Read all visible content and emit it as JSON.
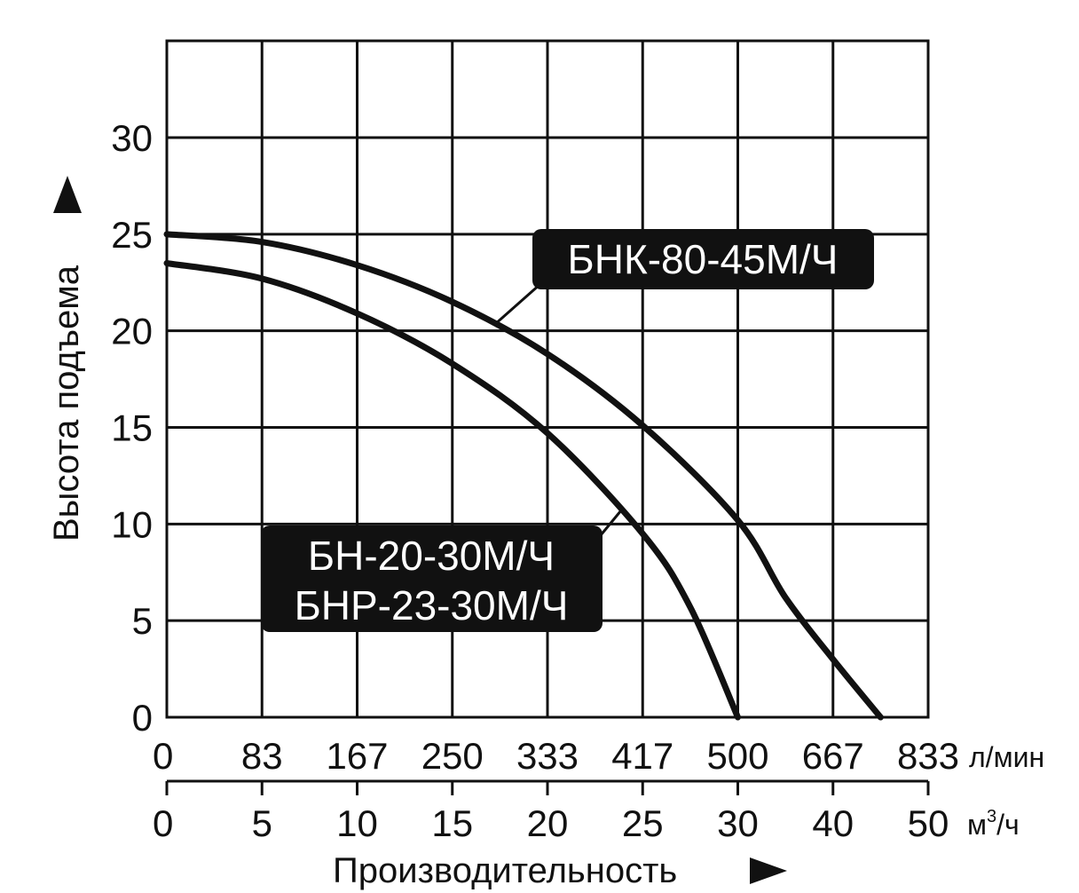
{
  "chart_data": {
    "type": "line",
    "title": "",
    "xlabel": "Производительность",
    "ylabel": "Высота подъема",
    "x_unit_primary": "м³/ч",
    "x_unit_primary_text": "м",
    "x_unit_primary_sup": "3",
    "x_unit_primary_tail": "/ч",
    "x_unit_secondary": "л/мин",
    "xlim": [
      0,
      50
    ],
    "ylim": [
      0,
      30
    ],
    "x_ticks": [
      "0",
      "5",
      "10",
      "15",
      "20",
      "25",
      "30",
      "40",
      "50"
    ],
    "x_ticks_secondary": [
      "0",
      "83",
      "167",
      "250",
      "333",
      "417",
      "500",
      "667",
      "833"
    ],
    "y_ticks": [
      "0",
      "5",
      "10",
      "15",
      "20",
      "25",
      "30"
    ],
    "grid": true,
    "series": [
      {
        "name": "БНК-80-45М/Ч",
        "x": [
          0,
          5,
          10,
          15,
          20,
          25,
          30,
          35,
          40,
          45
        ],
        "y": [
          25,
          24.6,
          23.4,
          21.5,
          18.8,
          15.1,
          10.2,
          6.2,
          3.0,
          0
        ]
      },
      {
        "name": "БН-20-30М/Ч",
        "name2": "БНР-23-30М/Ч",
        "x": [
          0,
          5,
          10,
          15,
          20,
          25,
          27.5,
          30
        ],
        "y": [
          23.5,
          22.7,
          20.9,
          18.3,
          14.7,
          9.5,
          5.7,
          0
        ]
      }
    ]
  }
}
